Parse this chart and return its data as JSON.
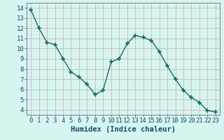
{
  "x": [
    0,
    1,
    2,
    3,
    4,
    5,
    6,
    7,
    8,
    9,
    10,
    11,
    12,
    13,
    14,
    15,
    16,
    17,
    18,
    19,
    20,
    21,
    22,
    23
  ],
  "y": [
    13.8,
    12.0,
    10.6,
    10.4,
    9.0,
    7.7,
    7.2,
    6.5,
    5.5,
    5.9,
    8.7,
    9.0,
    10.5,
    11.3,
    11.1,
    10.8,
    9.7,
    8.3,
    7.0,
    5.9,
    5.2,
    4.7,
    3.9,
    3.8
  ],
  "line_color": "#1a6b5a",
  "marker": "+",
  "marker_size": 5,
  "bg_color": "#d6f5f0",
  "grid_color": "#c8a8b8",
  "xlabel": "Humidex (Indice chaleur)",
  "xlim": [
    -0.5,
    23.5
  ],
  "ylim": [
    3.5,
    14.5
  ],
  "yticks": [
    4,
    5,
    6,
    7,
    8,
    9,
    10,
    11,
    12,
    13,
    14
  ],
  "xticks": [
    0,
    1,
    2,
    3,
    4,
    5,
    6,
    7,
    8,
    9,
    10,
    11,
    12,
    13,
    14,
    15,
    16,
    17,
    18,
    19,
    20,
    21,
    22,
    23
  ],
  "xlabel_fontsize": 7.5,
  "tick_fontsize": 6.5,
  "linewidth": 1.0,
  "marker_linewidth": 1.2
}
